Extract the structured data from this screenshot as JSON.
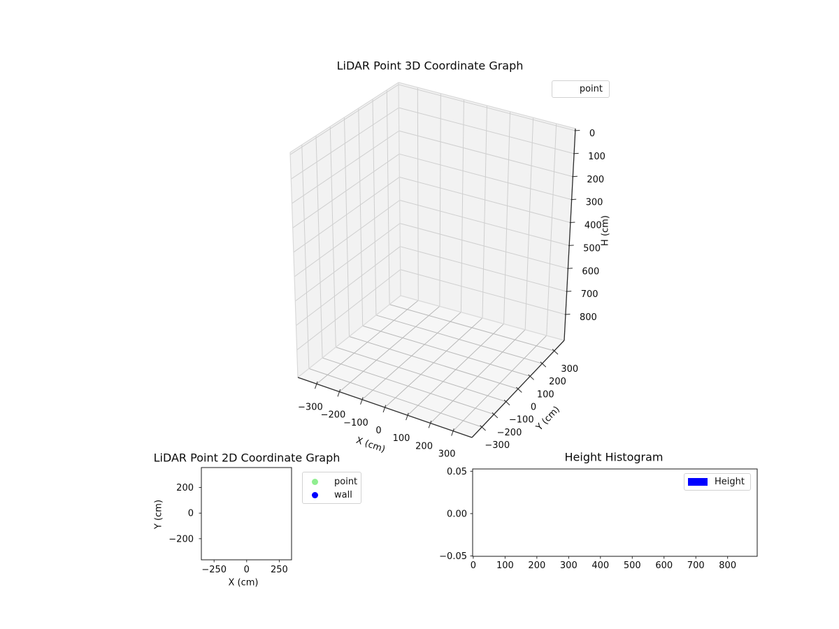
{
  "figure": {
    "background": "#ffffff"
  },
  "plot3d": {
    "title": "LiDAR Point 3D Coordinate Graph",
    "xlabel": "X (cm)",
    "ylabel": "Y (cm)",
    "zlabel": "H (cm)",
    "xticks": {
      "values": [
        -300,
        -200,
        -100,
        0,
        100,
        200,
        300
      ],
      "labels": [
        "−300",
        "−200",
        "−100",
        "0",
        "100",
        "200",
        "300"
      ]
    },
    "yticks": {
      "values": [
        300,
        200,
        100,
        0,
        -100,
        -200,
        -300
      ],
      "labels": [
        "300",
        "200",
        "100",
        "0",
        "−100",
        "−200",
        "−300"
      ]
    },
    "zticks": {
      "values": [
        0,
        100,
        200,
        300,
        400,
        500,
        600,
        700,
        800
      ],
      "labels": [
        "0",
        "100",
        "200",
        "300",
        "400",
        "500",
        "600",
        "700",
        "800"
      ]
    },
    "legend": {
      "items": [
        {
          "label": "point"
        }
      ]
    },
    "colors": {
      "pane": "#f2f2f2",
      "floor": "#f6f6f6",
      "wall_grid": "#cfcfcf",
      "floor_grid": "#b8b8b8",
      "pane_edge": "#d9d9d9",
      "spine": "#2b2b2b"
    }
  },
  "plot2d": {
    "title": "LiDAR Point 2D Coordinate Graph",
    "xlabel": "X (cm)",
    "ylabel": "Y (cm)",
    "xticks": {
      "values": [
        -250,
        0,
        250
      ],
      "labels": [
        "−250",
        "0",
        "250"
      ]
    },
    "yticks": {
      "values": [
        200,
        0,
        -200
      ],
      "labels": [
        "200",
        "0",
        "−200"
      ]
    },
    "legend": {
      "items": [
        {
          "label": "point",
          "color": "#90ee90"
        },
        {
          "label": "wall",
          "color": "#0000ff"
        }
      ]
    }
  },
  "hist": {
    "title": "Height Histogram",
    "xticks": {
      "values": [
        0,
        100,
        200,
        300,
        400,
        500,
        600,
        700,
        800
      ],
      "labels": [
        "0",
        "100",
        "200",
        "300",
        "400",
        "500",
        "600",
        "700",
        "800"
      ]
    },
    "yticks": {
      "values": [
        0.05,
        0.0,
        -0.05
      ],
      "labels": [
        "0.05",
        "0.00",
        "−0.05"
      ]
    },
    "legend": {
      "items": [
        {
          "label": "Height",
          "color": "#0000ff"
        }
      ]
    }
  },
  "chart_data": [
    {
      "type": "scatter",
      "projection": "3d",
      "title": "LiDAR Point 3D Coordinate Graph",
      "xlabel": "X (cm)",
      "ylabel": "Y (cm)",
      "zlabel": "H (cm)",
      "xlim": [
        -383,
        383
      ],
      "ylim": [
        -383,
        383
      ],
      "zlim": [
        0,
        880
      ],
      "zaxis_inverted": true,
      "grid": true,
      "legend_position": "upper right",
      "series": [
        {
          "name": "point",
          "points": []
        }
      ]
    },
    {
      "type": "scatter",
      "title": "LiDAR Point 2D Coordinate Graph",
      "xlabel": "X (cm)",
      "ylabel": "Y (cm)",
      "xlim": [
        -350,
        350
      ],
      "ylim": [
        -380,
        380
      ],
      "grid": false,
      "legend_position": "upper right outside",
      "series": [
        {
          "name": "point",
          "color": "#90ee90",
          "points": []
        },
        {
          "name": "wall",
          "color": "#0000ff",
          "points": []
        }
      ]
    },
    {
      "type": "bar",
      "title": "Height Histogram",
      "xlabel": "",
      "ylabel": "",
      "xlim": [
        0,
        893
      ],
      "ylim": [
        -0.055,
        0.055
      ],
      "grid": false,
      "legend_position": "upper right",
      "series": [
        {
          "name": "Height",
          "color": "#0000ff",
          "values": []
        }
      ]
    }
  ]
}
